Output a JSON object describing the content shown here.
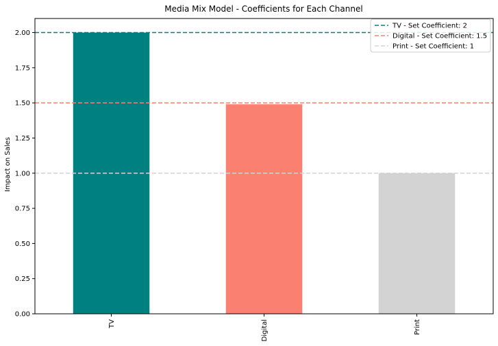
{
  "chart_data": {
    "type": "bar",
    "title": "Media Mix Model - Coefficients for Each Channel",
    "xlabel": "",
    "ylabel": "Impact on Sales",
    "categories": [
      "TV",
      "Digital",
      "Print"
    ],
    "values": [
      2.0,
      1.49,
      1.0
    ],
    "bar_colors": [
      "#008080",
      "#fa8072",
      "#d3d3d3"
    ],
    "ylim": [
      0,
      2.1
    ],
    "yticks": [
      "0.00",
      "0.25",
      "0.50",
      "0.75",
      "1.00",
      "1.25",
      "1.50",
      "1.75",
      "2.00"
    ],
    "reference_lines": [
      {
        "label": "TV - Set Coefficient: 2",
        "value": 2,
        "color": "#008080"
      },
      {
        "label": "Digital - Set Coefficient: 1.5",
        "value": 1.5,
        "color": "#fa8072"
      },
      {
        "label": "Print - Set Coefficient: 1",
        "value": 1,
        "color": "#d3d3d3"
      }
    ],
    "legend_position": "top-right",
    "grid": false
  }
}
